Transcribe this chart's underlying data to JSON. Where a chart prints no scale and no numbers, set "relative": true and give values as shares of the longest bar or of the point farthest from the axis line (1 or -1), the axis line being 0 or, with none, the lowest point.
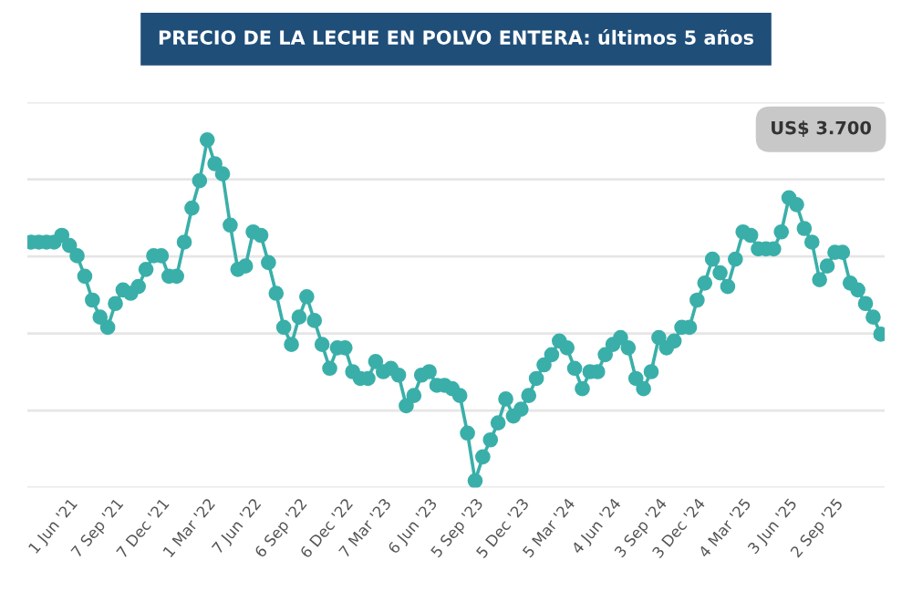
{
  "chart_data": {
    "type": "line",
    "title": "PRECIO DE LA LECHE EN POLVO ENTERA: últimos 5 años",
    "relative": true,
    "grid": "y",
    "marker": "circle",
    "line_style": "solid",
    "legend": false,
    "annotations": [
      "US$ 3.700"
    ],
    "categories": [
      null,
      null,
      null,
      null,
      null,
      "1 Jun '21",
      null,
      null,
      null,
      null,
      null,
      "7 Sep '21",
      null,
      null,
      null,
      null,
      null,
      "7 Dec '21",
      null,
      null,
      null,
      null,
      null,
      "1 Mar '22",
      null,
      null,
      null,
      null,
      null,
      "7 Jun '22",
      null,
      null,
      null,
      null,
      null,
      "6 Sep '22",
      null,
      null,
      null,
      null,
      null,
      "6 Dec '22",
      null,
      null,
      null,
      null,
      "7 Mar '23",
      null,
      null,
      null,
      null,
      null,
      "6 Jun '23",
      null,
      null,
      null,
      null,
      null,
      "5 Sep '23",
      null,
      null,
      null,
      null,
      null,
      "5 Dec '23",
      null,
      null,
      null,
      null,
      null,
      "5 Mar '24",
      null,
      null,
      null,
      null,
      null,
      "4 Jun '24",
      null,
      null,
      null,
      null,
      null,
      "3 Sep '24",
      null,
      null,
      null,
      null,
      "3 Dec '24",
      null,
      null,
      null,
      null,
      null,
      "4 Mar '25",
      null,
      null,
      null,
      null,
      null,
      "3 Jun '25",
      null,
      null,
      null,
      null,
      null,
      "2 Sep '25",
      null,
      null,
      null,
      null,
      null,
      null
    ],
    "series": [
      {
        "color": "#3aafa9",
        "values": [
          0.7,
          0.7,
          0.7,
          0.7,
          0.72,
          0.69,
          0.66,
          0.6,
          0.53,
          0.48,
          0.45,
          0.52,
          0.56,
          0.55,
          0.57,
          0.62,
          0.66,
          0.66,
          0.6,
          0.6,
          0.7,
          0.8,
          0.88,
          1,
          0.93,
          0.9,
          0.75,
          0.62,
          0.63,
          0.73,
          0.72,
          0.64,
          0.55,
          0.45,
          0.4,
          0.48,
          0.54,
          0.47,
          0.4,
          0.33,
          0.39,
          0.39,
          0.32,
          0.3,
          0.3,
          0.35,
          0.32,
          0.33,
          0.31,
          0.22,
          0.25,
          0.31,
          0.32,
          0.28,
          0.28,
          0.27,
          0.25,
          0.14,
          0,
          0.07,
          0.12,
          0.17,
          0.24,
          0.19,
          0.21,
          0.25,
          0.3,
          0.34,
          0.37,
          0.41,
          0.39,
          0.33,
          0.27,
          0.32,
          0.32,
          0.37,
          0.4,
          0.42,
          0.39,
          0.3,
          0.27,
          0.32,
          0.42,
          0.39,
          0.41,
          0.45,
          0.45,
          0.53,
          0.58,
          0.65,
          0.61,
          0.57,
          0.65,
          0.73,
          0.72,
          0.68,
          0.68,
          0.68,
          0.73,
          0.83,
          0.81,
          0.74,
          0.7,
          0.59,
          0.63,
          0.67,
          0.67,
          0.58,
          0.56,
          0.52,
          0.48,
          0.43
        ]
      }
    ]
  }
}
